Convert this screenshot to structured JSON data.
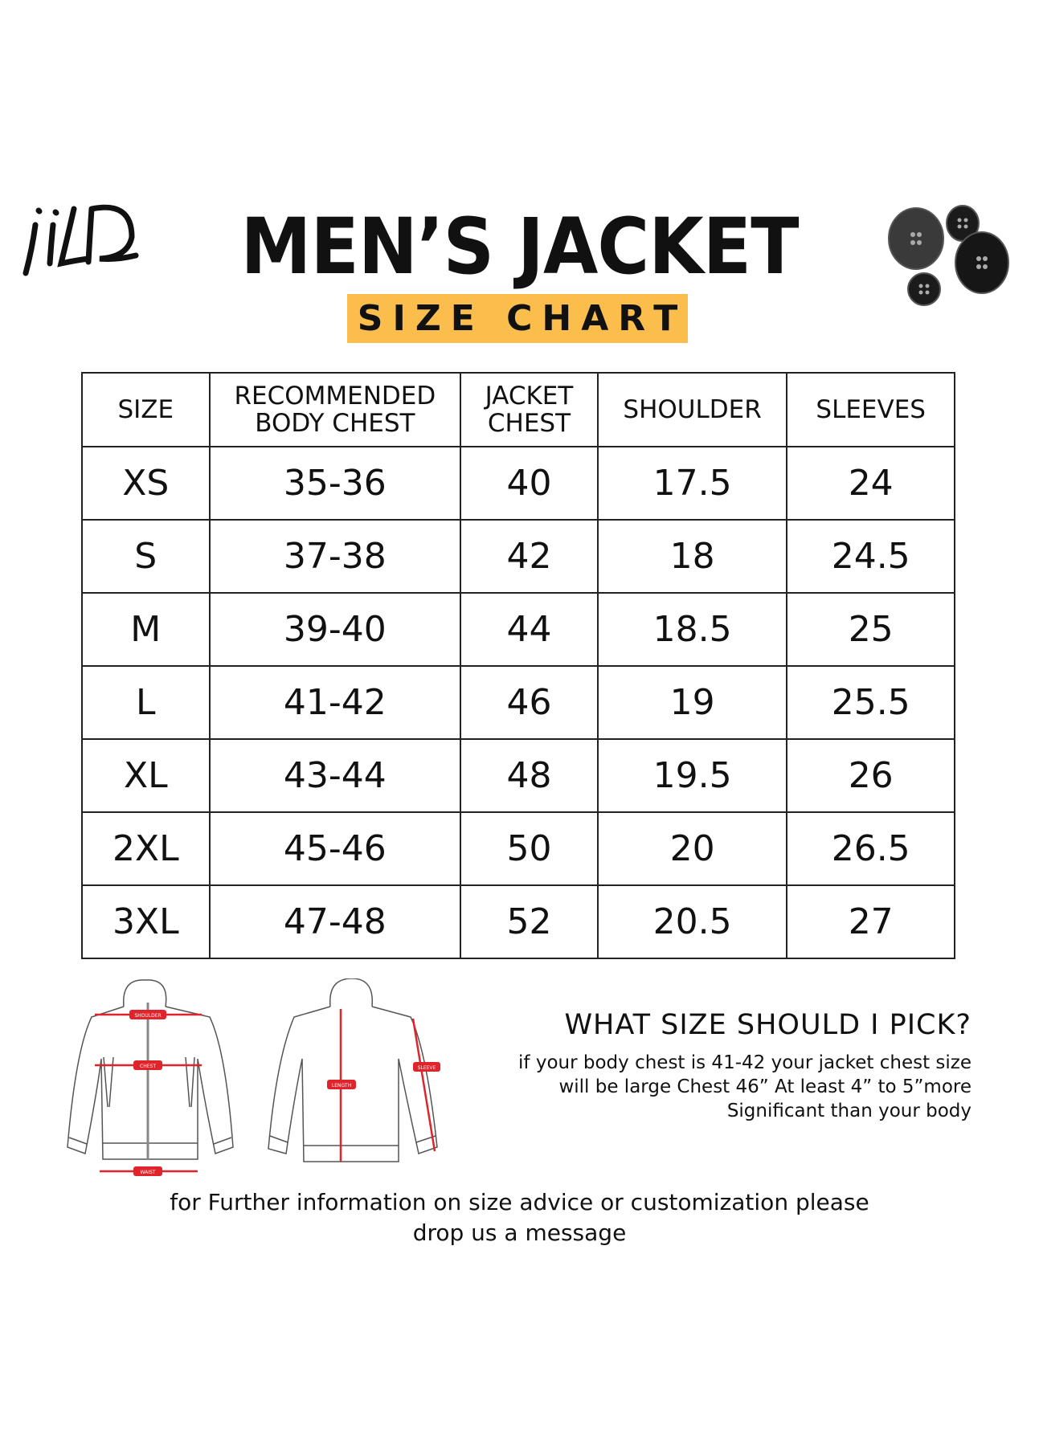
{
  "brand": {
    "logo_text": "jiLD"
  },
  "header": {
    "title": "MEN’S JACKET",
    "subtitle": "SIZE CHART",
    "accent_color": "#fbbd4c"
  },
  "table": {
    "columns": [
      "SIZE",
      "RECOMMENDED BODY CHEST",
      "JACKET CHEST",
      "SHOULDER",
      "SLEEVES"
    ],
    "columns_lines": [
      [
        "SIZE"
      ],
      [
        "RECOMMENDED",
        "BODY CHEST"
      ],
      [
        "JACKET",
        "CHEST"
      ],
      [
        "SHOULDER"
      ],
      [
        "SLEEVES"
      ]
    ],
    "rows": [
      [
        "XS",
        "35-36",
        "40",
        "17.5",
        "24"
      ],
      [
        "S",
        "37-38",
        "42",
        "18",
        "24.5"
      ],
      [
        "M",
        "39-40",
        "44",
        "18.5",
        "25"
      ],
      [
        "L",
        "41-42",
        "46",
        "19",
        "25.5"
      ],
      [
        "XL",
        "43-44",
        "48",
        "19.5",
        "26"
      ],
      [
        "2XL",
        "45-46",
        "50",
        "20",
        "26.5"
      ],
      [
        "3XL",
        "47-48",
        "52",
        "20.5",
        "27"
      ]
    ]
  },
  "diagram": {
    "labels": {
      "shoulder": "SHOULDER",
      "chest": "CHEST",
      "waist": "WAIST",
      "length": "LENGTH",
      "sleeve": "SLEEVE"
    },
    "marker_color": "#e0242b"
  },
  "advice": {
    "title": "WHAT SIZE SHOULD I PICK?",
    "lines": [
      "if your body chest is 41-42 your jacket chest size",
      "will be large Chest 46” At least 4” to 5”more",
      "Significant than your body"
    ]
  },
  "footer": {
    "lines": [
      "for Further information on size advice or customization please",
      "drop us a message"
    ]
  }
}
